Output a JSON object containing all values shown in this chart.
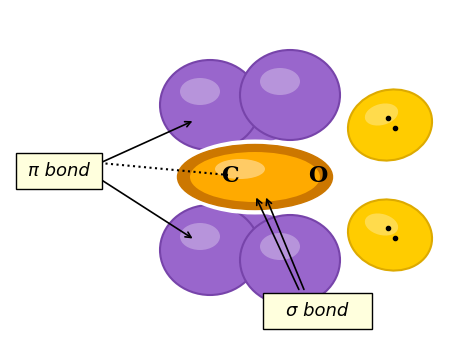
{
  "bg_color": "#ffffff",
  "purple_color": "#9966cc",
  "purple_dark": "#7744aa",
  "orange_color": "#ffaa00",
  "orange_dark": "#cc7700",
  "yellow_color": "#ffcc00",
  "yellow_dark": "#ddaa00",
  "white_color": "#ffffff",
  "label_bg": "#ffffdd",
  "pi_label": "π bond",
  "sigma_label": "σ bond",
  "C_label": "C",
  "O_label": "O",
  "figsize": [
    4.74,
    3.55
  ],
  "dpi": 100
}
